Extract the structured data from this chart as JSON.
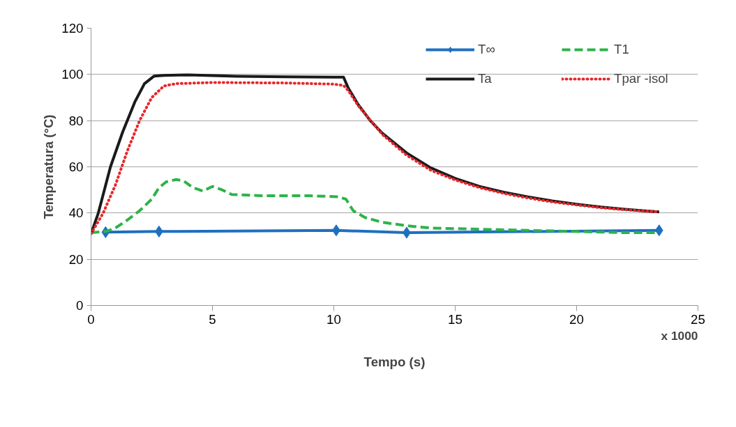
{
  "chart_data": {
    "type": "line",
    "xlabel": "Tempo (s)",
    "ylabel": "Temperatura (°C)",
    "annotations": [
      "x 1000"
    ],
    "xlim": [
      0,
      25
    ],
    "xticks": [
      0,
      5,
      10,
      15,
      20,
      25
    ],
    "ylim": [
      0,
      120
    ],
    "yticks": [
      0,
      20,
      40,
      60,
      80,
      100,
      120
    ],
    "grid": "y",
    "legend": "top right",
    "series": [
      {
        "name": "T∞",
        "color": "#1f6fbf",
        "line_style": "solid",
        "marker": "diamond",
        "x": [
          0.6,
          2.8,
          10.1,
          13.0,
          23.4
        ],
        "values": [
          31.7,
          32,
          32.5,
          31.5,
          32.5
        ]
      },
      {
        "name": "T1",
        "color": "#2db34a",
        "line_style": "dashed",
        "marker": "none",
        "x": [
          0,
          0.6,
          1,
          1.5,
          2,
          2.5,
          2.8,
          3.1,
          3.5,
          3.8,
          4.2,
          4.6,
          5,
          5.4,
          5.8,
          7,
          8,
          9,
          10.2,
          10.5,
          10.8,
          11.3,
          12,
          13,
          14,
          16,
          18,
          20,
          22,
          23.4
        ],
        "values": [
          31.5,
          32,
          33.5,
          37,
          41,
          46,
          51,
          53.5,
          54.5,
          54,
          51,
          49.5,
          51.5,
          50,
          48,
          47.5,
          47.5,
          47.5,
          47,
          46,
          41,
          38,
          36,
          34.5,
          33.5,
          33,
          32.5,
          32,
          31.5,
          31.5
        ]
      },
      {
        "name": "Ta",
        "color": "#1a1a1a",
        "line_style": "solid",
        "marker": "none",
        "x": [
          0,
          0.3,
          0.8,
          1.3,
          1.8,
          2.2,
          2.6,
          3,
          4,
          6,
          8,
          10,
          10.4,
          10.6,
          11,
          11.5,
          12,
          13,
          14,
          15,
          16,
          17,
          18,
          19,
          20,
          21,
          22,
          23,
          23.4
        ],
        "values": [
          31,
          40,
          60,
          75,
          88,
          96,
          99.3,
          99.6,
          99.8,
          99.2,
          99,
          98.8,
          98.8,
          94,
          87,
          80,
          74.5,
          66,
          59.5,
          55,
          51.5,
          49,
          47,
          45.2,
          43.8,
          42.6,
          41.6,
          40.8,
          40.5
        ]
      },
      {
        "name": "Tpar -isol",
        "color": "#e8262b",
        "line_style": "dotted",
        "marker": "none",
        "x": [
          0,
          0.5,
          1,
          1.5,
          2,
          2.5,
          3,
          3.5,
          5,
          8,
          10,
          10.4,
          10.6,
          11,
          12,
          13,
          14,
          15,
          16,
          17,
          18,
          19,
          20,
          21,
          22,
          23,
          23.4
        ],
        "values": [
          31,
          40,
          52,
          67,
          80,
          90,
          95,
          96,
          96.5,
          96.3,
          95.8,
          95.2,
          93,
          86.5,
          74,
          65,
          58.5,
          54.3,
          51,
          48.5,
          46.5,
          44.8,
          43.5,
          42.3,
          41.4,
          40.7,
          40.5
        ]
      }
    ]
  }
}
